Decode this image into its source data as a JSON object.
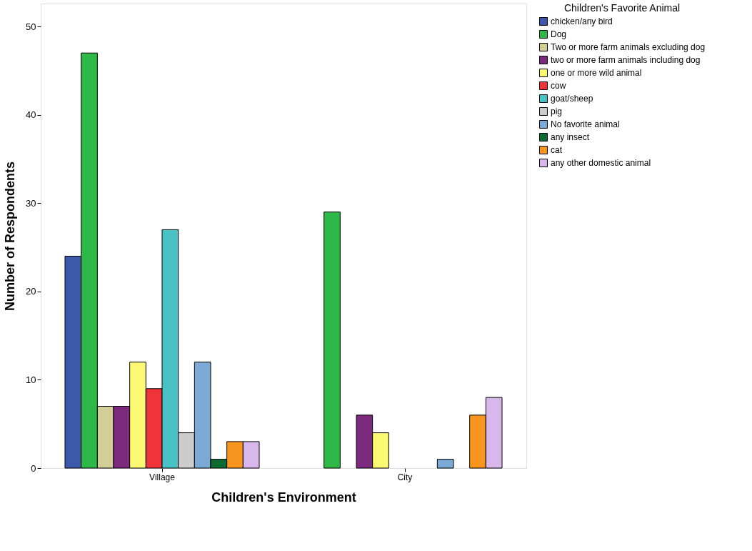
{
  "chart_data": {
    "type": "bar",
    "xlabel": "Children's Environment",
    "ylabel": "Number of Respondents",
    "legend_title": "Children's Favorite Animal",
    "legend": "top right",
    "grid": false,
    "categories": [
      "Village",
      "City"
    ],
    "ylim": [
      0,
      52.6
    ],
    "yticks": [
      0,
      10,
      20,
      30,
      40,
      50
    ],
    "series": [
      {
        "name": "chicken/any bird",
        "color": "#3e58ac",
        "values": [
          24,
          null
        ]
      },
      {
        "name": "Dog",
        "color": "#2eb848",
        "values": [
          47,
          29
        ]
      },
      {
        "name": "Two or more farm animals excluding dog",
        "color": "#d3ce97",
        "values": [
          7,
          null
        ]
      },
      {
        "name": "two or more farm animals including dog",
        "color": "#7b2a7d",
        "values": [
          7,
          6
        ]
      },
      {
        "name": "one or more wild animal",
        "color": "#fbf873",
        "values": [
          12,
          4
        ]
      },
      {
        "name": "cow",
        "color": "#ef3338",
        "values": [
          9,
          null
        ]
      },
      {
        "name": "goat/sheep",
        "color": "#48c2c5",
        "values": [
          27,
          null
        ]
      },
      {
        "name": "pig",
        "color": "#cccccc",
        "values": [
          4,
          null
        ]
      },
      {
        "name": "No favorite animal",
        "color": "#7aaad5",
        "values": [
          12,
          1
        ]
      },
      {
        "name": "any insect",
        "color": "#0d6a32",
        "values": [
          1,
          null
        ]
      },
      {
        "name": "cat",
        "color": "#f8951e",
        "values": [
          3,
          6
        ]
      },
      {
        "name": "any other domestic animal",
        "color": "#d8b8ec",
        "values": [
          3,
          8
        ]
      }
    ]
  }
}
